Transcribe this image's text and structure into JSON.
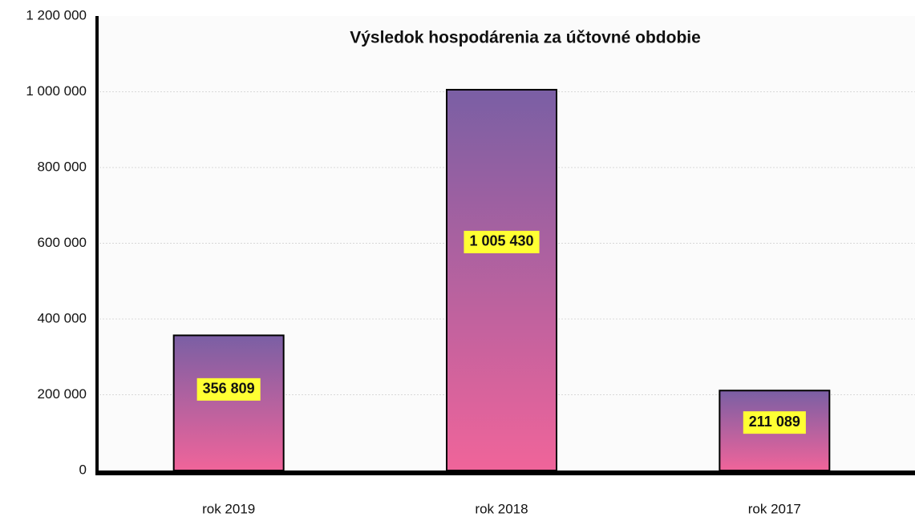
{
  "chart_data": {
    "type": "bar",
    "title": "Výsledok hospodárenia za účtovné obdobie",
    "categories": [
      "rok 2019",
      "rok 2018",
      "rok 2017"
    ],
    "values": [
      356809,
      1005430,
      211089
    ],
    "value_labels": [
      "356 809",
      "1 005 430",
      "211 089"
    ],
    "gradient": [
      "#7a5fa4",
      "#f0649a"
    ],
    "ylim": [
      0,
      1200000
    ],
    "yticks": [
      0,
      {
        "value": 200000,
        "label": "200 000"
      },
      {
        "value": 400000,
        "label": "400 000"
      },
      {
        "value": 600000,
        "label": "600 000"
      },
      {
        "value": 800000,
        "label": "800 000"
      },
      {
        "value": 1000000,
        "label": "1 000 000"
      },
      {
        "value": 1200000,
        "label": "1 200 000"
      }
    ],
    "grid": true
  }
}
